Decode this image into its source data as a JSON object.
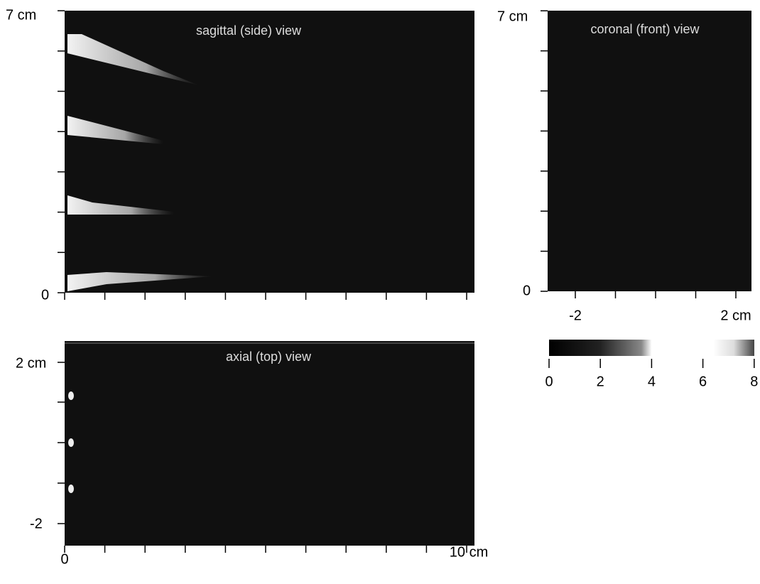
{
  "sagittal": {
    "title": "sagittal (side) view",
    "y_top": "7 cm",
    "y_bottom": "0"
  },
  "coronal": {
    "title": "coronal (front) view",
    "y_top": "7 cm",
    "y_bottom": "0",
    "x_left": "-2",
    "x_right": "2 cm"
  },
  "axial": {
    "title": "axial (top) view",
    "y_top": "2 cm",
    "y_bottom": "-2",
    "x_left": "0",
    "x_right": "10 cm"
  },
  "colorbar": {
    "labels": [
      "0",
      "2",
      "4",
      "6",
      "8"
    ]
  }
}
